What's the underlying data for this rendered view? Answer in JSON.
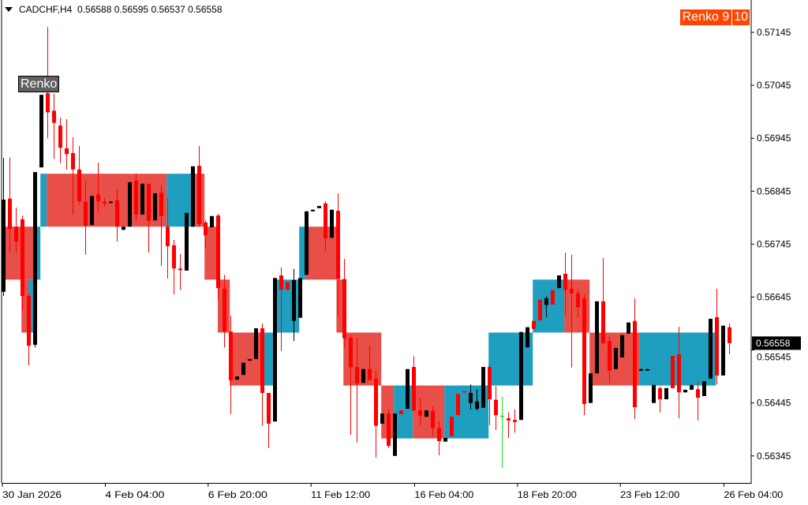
{
  "header": {
    "symbol": "CADCHF,H4",
    "ohlc": "0.56588 0.56595 0.56537 0.56558"
  },
  "labels": {
    "renko_left": "Renko",
    "renko_right": "Renko 9",
    "renko_right_num": "10"
  },
  "current_price": "0.56558",
  "colors": {
    "bull": "#000000",
    "bear": "#ff0000",
    "brick_up": "#1f9fbf",
    "brick_down": "#e74f48",
    "doji": "#22dd22",
    "current_price_bg": "#000000",
    "renko_label_bg": "#ff4500"
  },
  "chart_data": {
    "type": "candlestick",
    "symbol": "CADCHF",
    "timeframe": "H4",
    "ylim": [
      0.5629,
      0.57206
    ],
    "y_ticks": [
      "0.57145",
      "0.57045",
      "0.56945",
      "0.56845",
      "0.56745",
      "0.56645",
      "0.56545",
      "0.56445",
      "0.56345"
    ],
    "x_ticks": [
      {
        "bar": 0,
        "label": "30 Jan 2026"
      },
      {
        "bar": 16.3,
        "label": "4 Feb 04:00"
      },
      {
        "bar": 32.6,
        "label": "6 Feb 20:00"
      },
      {
        "bar": 48.9,
        "label": "11 Feb 12:00"
      },
      {
        "bar": 65.3,
        "label": "16 Feb 04:00"
      },
      {
        "bar": 81.6,
        "label": "18 Feb 20:00"
      },
      {
        "bar": 97.9,
        "label": "23 Feb 12:00"
      },
      {
        "bar": 114.3,
        "label": "26 Feb 04:00"
      }
    ],
    "candles_ohlc": [
      [
        0.56655,
        0.56908,
        0.56647,
        0.56829
      ],
      [
        0.56831,
        0.56909,
        0.56729,
        0.56774
      ],
      [
        0.56778,
        0.56814,
        0.56729,
        0.5675
      ],
      [
        0.56792,
        0.56799,
        0.5662,
        0.56647
      ],
      [
        0.56647,
        0.56652,
        0.56516,
        0.56553
      ],
      [
        0.56555,
        0.56881,
        0.5655,
        0.56881
      ],
      [
        0.5689,
        0.57027,
        0.5689,
        0.57027
      ],
      [
        0.5703,
        0.57155,
        0.56945,
        0.56994
      ],
      [
        0.56997,
        0.57029,
        0.56906,
        0.56974
      ],
      [
        0.56969,
        0.56984,
        0.56898,
        0.56927
      ],
      [
        0.56926,
        0.56981,
        0.56886,
        0.56915
      ],
      [
        0.56917,
        0.56947,
        0.56801,
        0.56886
      ],
      [
        0.56886,
        0.5693,
        0.5682,
        0.56826
      ],
      [
        0.56825,
        0.56865,
        0.56725,
        0.5678
      ],
      [
        0.56781,
        0.56836,
        0.56781,
        0.56836
      ],
      [
        0.56839,
        0.56899,
        0.56805,
        0.56826
      ],
      [
        0.56825,
        0.56833,
        0.56816,
        0.56822
      ],
      [
        0.56823,
        0.56826,
        0.56822,
        0.56825
      ],
      [
        0.56828,
        0.56848,
        0.5675,
        0.56778
      ],
      [
        0.56772,
        0.56778,
        0.56772,
        0.56778
      ],
      [
        0.56778,
        0.56862,
        0.56778,
        0.56862
      ],
      [
        0.56865,
        0.56878,
        0.56789,
        0.56801
      ],
      [
        0.56801,
        0.5686,
        0.56801,
        0.56859
      ],
      [
        0.56859,
        0.5686,
        0.56729,
        0.56789
      ],
      [
        0.5679,
        0.56841,
        0.5679,
        0.56841
      ],
      [
        0.56842,
        0.56856,
        0.56704,
        0.56798
      ],
      [
        0.56778,
        0.56833,
        0.5668,
        0.56741
      ],
      [
        0.56743,
        0.56753,
        0.5665,
        0.56699
      ],
      [
        0.56699,
        0.56726,
        0.56659,
        0.56696
      ],
      [
        0.56695,
        0.56804,
        0.56695,
        0.56804
      ],
      [
        0.56778,
        0.56892,
        0.56778,
        0.56892
      ],
      [
        0.56893,
        0.5693,
        0.56778,
        0.56783
      ],
      [
        0.56786,
        0.5679,
        0.56737,
        0.56762
      ],
      [
        0.56777,
        0.56798,
        0.56777,
        0.56798
      ],
      [
        0.56799,
        0.56802,
        0.56641,
        0.56662
      ],
      [
        0.56661,
        0.56687,
        0.5655,
        0.5658
      ],
      [
        0.5658,
        0.5661,
        0.56424,
        0.56488
      ],
      [
        0.56489,
        0.56495,
        0.56489,
        0.56495
      ],
      [
        0.56498,
        0.56521,
        0.56498,
        0.56521
      ],
      [
        0.56525,
        0.56528,
        0.56525,
        0.56528
      ],
      [
        0.56528,
        0.56586,
        0.56528,
        0.56586
      ],
      [
        0.56586,
        0.56595,
        0.56402,
        0.56464
      ],
      [
        0.56464,
        0.56464,
        0.5636,
        0.56406
      ],
      [
        0.5641,
        0.56681,
        0.5641,
        0.56681
      ],
      [
        0.56686,
        0.56701,
        0.56543,
        0.56659
      ],
      [
        0.56673,
        0.56673,
        0.56659,
        0.56659
      ],
      [
        0.566,
        0.56698,
        0.56562,
        0.56677
      ],
      [
        0.56606,
        0.56681,
        0.56606,
        0.56681
      ],
      [
        0.56687,
        0.56807,
        0.56687,
        0.56807
      ],
      [
        0.56807,
        0.5681,
        0.56807,
        0.5681
      ],
      [
        0.56813,
        0.56817,
        0.56813,
        0.56817
      ],
      [
        0.56822,
        0.56826,
        0.56732,
        0.56756
      ],
      [
        0.56757,
        0.5681,
        0.56757,
        0.5681
      ],
      [
        0.56808,
        0.56841,
        0.56608,
        0.56679
      ],
      [
        0.56679,
        0.56717,
        0.5655,
        0.56567
      ],
      [
        0.56568,
        0.56573,
        0.56385,
        0.56512
      ],
      [
        0.56513,
        0.56568,
        0.5637,
        0.56482
      ],
      [
        0.56483,
        0.56509,
        0.56483,
        0.56509
      ],
      [
        0.56509,
        0.56553,
        0.56488,
        0.56488
      ],
      [
        0.56491,
        0.56507,
        0.56342,
        0.56402
      ],
      [
        0.56406,
        0.56425,
        0.56406,
        0.56425
      ],
      [
        0.56425,
        0.56433,
        0.5636,
        0.56364
      ],
      [
        0.56345,
        0.56425,
        0.56345,
        0.56425
      ],
      [
        0.56431,
        0.56431,
        0.56424,
        0.56424
      ],
      [
        0.56434,
        0.56509,
        0.56434,
        0.56509
      ],
      [
        0.56513,
        0.56533,
        0.56428,
        0.56431
      ],
      [
        0.56431,
        0.56455,
        0.56403,
        0.56421
      ],
      [
        0.56419,
        0.56431,
        0.56419,
        0.56431
      ],
      [
        0.5643,
        0.56439,
        0.56382,
        0.56398
      ],
      [
        0.56398,
        0.5641,
        0.56346,
        0.56373
      ],
      [
        0.56372,
        0.56379,
        0.56372,
        0.56379
      ],
      [
        0.56419,
        0.56419,
        0.56382,
        0.56382
      ],
      [
        0.56462,
        0.56462,
        0.56422,
        0.56422
      ],
      [
        0.56467,
        0.56467,
        0.56465,
        0.56465
      ],
      [
        0.56445,
        0.5648,
        0.56433,
        0.56464
      ],
      [
        0.56434,
        0.56471,
        0.56431,
        0.56448
      ],
      [
        0.56436,
        0.56513,
        0.56436,
        0.56513
      ],
      [
        0.56513,
        0.56519,
        0.56403,
        0.56452
      ],
      [
        0.56451,
        0.56477,
        0.56394,
        0.56422
      ],
      [
        0.56421,
        0.56457,
        0.56322,
        0.56421
      ],
      [
        0.56416,
        0.56427,
        0.56379,
        0.56412
      ],
      [
        0.56413,
        0.56433,
        0.56389,
        0.56409
      ],
      [
        0.56413,
        0.56579,
        0.56413,
        0.56579
      ],
      [
        0.5655,
        0.56588,
        0.5655,
        0.56588
      ],
      [
        0.566,
        0.566,
        0.56585,
        0.56585
      ],
      [
        0.5664,
        0.5664,
        0.56601,
        0.56601
      ],
      [
        0.5663,
        0.56647,
        0.56607,
        0.56643
      ],
      [
        0.56658,
        0.56658,
        0.56631,
        0.56631
      ],
      [
        0.56662,
        0.56686,
        0.56662,
        0.56686
      ],
      [
        0.56689,
        0.56729,
        0.56611,
        0.56659
      ],
      [
        0.56661,
        0.56725,
        0.56512,
        0.56652
      ],
      [
        0.56652,
        0.56658,
        0.56606,
        0.56626
      ],
      [
        0.56643,
        0.5665,
        0.56422,
        0.56443
      ],
      [
        0.56445,
        0.56501,
        0.56445,
        0.56501
      ],
      [
        0.56501,
        0.56637,
        0.56501,
        0.56637
      ],
      [
        0.56637,
        0.56719,
        0.56555,
        0.56558
      ],
      [
        0.56562,
        0.56571,
        0.56483,
        0.56506
      ],
      [
        0.56509,
        0.56549,
        0.56509,
        0.56549
      ],
      [
        0.56531,
        0.56573,
        0.56531,
        0.56573
      ],
      [
        0.56576,
        0.56597,
        0.56576,
        0.56597
      ],
      [
        0.566,
        0.56643,
        0.56415,
        0.56437
      ],
      [
        0.56506,
        0.56509,
        0.56506,
        0.56509
      ],
      [
        0.56506,
        0.56509,
        0.56506,
        0.56509
      ],
      [
        0.56445,
        0.56479,
        0.56445,
        0.56479
      ],
      [
        0.56473,
        0.56476,
        0.56427,
        0.56452
      ],
      [
        0.56452,
        0.56473,
        0.56452,
        0.56473
      ],
      [
        0.56534,
        0.56534,
        0.56473,
        0.56473
      ],
      [
        0.56537,
        0.56589,
        0.56416,
        0.56465
      ],
      [
        0.56465,
        0.5647,
        0.56465,
        0.5647
      ],
      [
        0.5647,
        0.56479,
        0.5647,
        0.56479
      ],
      [
        0.56471,
        0.56486,
        0.56412,
        0.56455
      ],
      [
        0.56458,
        0.56486,
        0.56458,
        0.56486
      ],
      [
        0.56491,
        0.56604,
        0.56491,
        0.56604
      ],
      [
        0.56607,
        0.56661,
        0.5648,
        0.56497
      ],
      [
        0.56497,
        0.56591,
        0.56497,
        0.56591
      ],
      [
        0.56588,
        0.56595,
        0.56537,
        0.56558
      ]
    ],
    "renko_brick_size": 0.001,
    "renko_bricks": [
      {
        "from_bar": 0.4,
        "to_bar": 5.4,
        "open": 0.56778,
        "close": 0.56678
      },
      {
        "from_bar": 3.4,
        "to_bar": 4.5,
        "open": 0.56678,
        "close": 0.56578
      },
      {
        "from_bar": 4.5,
        "to_bar": 5.4,
        "open": 0.56578,
        "close": 0.56678
      },
      {
        "from_bar": 5.4,
        "to_bar": 6.4,
        "open": 0.56678,
        "close": 0.56778
      },
      {
        "from_bar": 6.4,
        "to_bar": 7.4,
        "open": 0.56778,
        "close": 0.56878
      },
      {
        "from_bar": 7.4,
        "to_bar": 26.4,
        "open": 0.56878,
        "close": 0.56778
      },
      {
        "from_bar": 26.4,
        "to_bar": 30.4,
        "open": 0.56778,
        "close": 0.56878
      },
      {
        "from_bar": 30.4,
        "to_bar": 32.4,
        "open": 0.56878,
        "close": 0.56778
      },
      {
        "from_bar": 32.4,
        "to_bar": 34.5,
        "open": 0.56778,
        "close": 0.56678
      },
      {
        "from_bar": 34.5,
        "to_bar": 36.4,
        "open": 0.56678,
        "close": 0.56578
      },
      {
        "from_bar": 36.4,
        "to_bar": 41.6,
        "open": 0.56578,
        "close": 0.56478
      },
      {
        "from_bar": 41.6,
        "to_bar": 43.4,
        "open": 0.56478,
        "close": 0.56578
      },
      {
        "from_bar": 43.4,
        "to_bar": 47.4,
        "open": 0.56578,
        "close": 0.56678
      },
      {
        "from_bar": 47.4,
        "to_bar": 48.4,
        "open": 0.56678,
        "close": 0.56778
      },
      {
        "from_bar": 48.4,
        "to_bar": 53.3,
        "open": 0.56778,
        "close": 0.56678
      },
      {
        "from_bar": 53.3,
        "to_bar": 54.4,
        "open": 0.56678,
        "close": 0.56578
      },
      {
        "from_bar": 54.4,
        "to_bar": 60.4,
        "open": 0.56578,
        "close": 0.56478
      },
      {
        "from_bar": 60.4,
        "to_bar": 62.4,
        "open": 0.56478,
        "close": 0.56378
      },
      {
        "from_bar": 62.4,
        "to_bar": 65.4,
        "open": 0.56378,
        "close": 0.56478
      },
      {
        "from_bar": 65.4,
        "to_bar": 70.4,
        "open": 0.56478,
        "close": 0.56378
      },
      {
        "from_bar": 70.4,
        "to_bar": 77.4,
        "open": 0.56378,
        "close": 0.56478
      },
      {
        "from_bar": 77.4,
        "to_bar": 84.4,
        "open": 0.56478,
        "close": 0.56578
      },
      {
        "from_bar": 84.4,
        "to_bar": 89.4,
        "open": 0.56578,
        "close": 0.56678
      },
      {
        "from_bar": 89.4,
        "to_bar": 93.4,
        "open": 0.56678,
        "close": 0.56578
      },
      {
        "from_bar": 93.4,
        "to_bar": 101.3,
        "open": 0.56578,
        "close": 0.56478
      },
      {
        "from_bar": 101.3,
        "to_bar": 113.4,
        "open": 0.56478,
        "close": 0.56578
      }
    ]
  }
}
